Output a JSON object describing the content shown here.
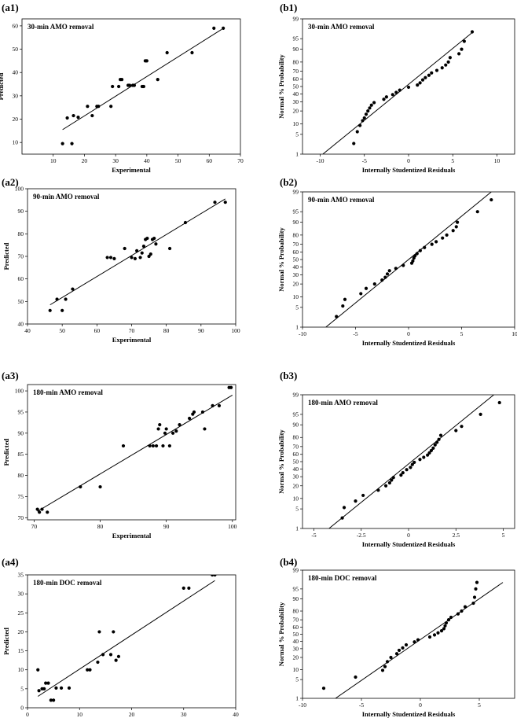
{
  "chart_data": [
    {
      "id": "a1",
      "panel_label": "(a1)",
      "type": "scatter",
      "title": "30-min AMO removal",
      "xlabel": "Experimental",
      "ylabel": "Predicted",
      "xlim": [
        0,
        70
      ],
      "ylim": [
        5,
        63
      ],
      "xticks": [
        10,
        20,
        30,
        40,
        50,
        60,
        70
      ],
      "yticks": [
        10,
        20,
        30,
        40,
        50,
        60
      ],
      "fit_line": [
        [
          13,
          15.5
        ],
        [
          64,
          58.5
        ]
      ],
      "points": [
        [
          13,
          9.5
        ],
        [
          14.5,
          20.5
        ],
        [
          16,
          9.5
        ],
        [
          16.5,
          21.5
        ],
        [
          18,
          20.8
        ],
        [
          21,
          25.5
        ],
        [
          22.5,
          21.5
        ],
        [
          24,
          25.5
        ],
        [
          24.5,
          25.5
        ],
        [
          28.5,
          25.5
        ],
        [
          29,
          34
        ],
        [
          31,
          34
        ],
        [
          31.5,
          37
        ],
        [
          32,
          37
        ],
        [
          34,
          34.5
        ],
        [
          34.5,
          34.5
        ],
        [
          35.5,
          34.5
        ],
        [
          36,
          34.5
        ],
        [
          38.5,
          34
        ],
        [
          39,
          34
        ],
        [
          39.5,
          45
        ],
        [
          40,
          45
        ],
        [
          43.5,
          37
        ],
        [
          46.5,
          48.5
        ],
        [
          54.5,
          48.5
        ],
        [
          61.5,
          59
        ],
        [
          64.5,
          59
        ]
      ]
    },
    {
      "id": "b1",
      "panel_label": "(b1)",
      "type": "scatter",
      "title": "30-min AMO removal",
      "xlabel": "Internally Studentized Residuals",
      "ylabel": "Normal % Probability",
      "xlim": [
        -12,
        12
      ],
      "ylim": [
        1,
        99
      ],
      "xticks": [
        -10,
        -5,
        0,
        5,
        10
      ],
      "yticks": [
        1,
        5,
        10,
        20,
        30,
        40,
        50,
        60,
        70,
        80,
        90,
        95,
        99
      ],
      "fit_line": [
        [
          -9.7,
          1
        ],
        [
          7.3,
          97
        ]
      ],
      "points": [
        [
          -6.2,
          2.5
        ],
        [
          -5.8,
          6
        ],
        [
          -5.5,
          9
        ],
        [
          -5.2,
          12
        ],
        [
          -5,
          14
        ],
        [
          -4.8,
          17
        ],
        [
          -4.6,
          20
        ],
        [
          -4.4,
          23
        ],
        [
          -4.2,
          26
        ],
        [
          -3.9,
          29
        ],
        [
          -2.8,
          33
        ],
        [
          -2.5,
          36
        ],
        [
          -1.8,
          39
        ],
        [
          -1.4,
          42
        ],
        [
          -1,
          45
        ],
        [
          0,
          49
        ],
        [
          1,
          52
        ],
        [
          1.3,
          55
        ],
        [
          1.6,
          59
        ],
        [
          1.9,
          62
        ],
        [
          2.3,
          65
        ],
        [
          2.6,
          68
        ],
        [
          3.2,
          71
        ],
        [
          3.8,
          74
        ],
        [
          4.2,
          77
        ],
        [
          4.5,
          80
        ],
        [
          4.7,
          84
        ],
        [
          5.7,
          87
        ],
        [
          6,
          90
        ],
        [
          6.3,
          94
        ],
        [
          7.2,
          97
        ]
      ]
    },
    {
      "id": "a2",
      "panel_label": "(a2)",
      "type": "scatter",
      "title": "90-min AMO removal",
      "xlabel": "Experimental",
      "ylabel": "Predicted",
      "xlim": [
        40,
        100
      ],
      "ylim": [
        40,
        100
      ],
      "xticks": [
        40,
        50,
        60,
        70,
        80,
        90,
        100
      ],
      "yticks": [
        40,
        50,
        60,
        70,
        80,
        90,
        100
      ],
      "fit_line": [
        [
          46.5,
          48.5
        ],
        [
          97,
          95.5
        ]
      ],
      "points": [
        [
          46.5,
          46
        ],
        [
          48.5,
          51
        ],
        [
          50,
          46
        ],
        [
          51,
          51
        ],
        [
          53,
          55.5
        ],
        [
          63,
          69.5
        ],
        [
          64,
          69.5
        ],
        [
          65,
          69
        ],
        [
          68,
          73.5
        ],
        [
          70,
          69.5
        ],
        [
          71,
          69
        ],
        [
          71.5,
          72.5
        ],
        [
          72.5,
          69.5
        ],
        [
          73,
          71.5
        ],
        [
          73.5,
          74.5
        ],
        [
          74,
          77.5
        ],
        [
          74.5,
          78
        ],
        [
          75,
          70
        ],
        [
          75.5,
          71
        ],
        [
          76,
          77.5
        ],
        [
          76.5,
          78
        ],
        [
          77,
          75.5
        ],
        [
          81,
          73.5
        ],
        [
          85.5,
          85
        ],
        [
          94,
          94
        ],
        [
          97,
          94
        ]
      ]
    },
    {
      "id": "b2",
      "panel_label": "(b2)",
      "type": "scatter",
      "title": "90-min AMO removal",
      "xlabel": "Internally Studentized Residuals",
      "ylabel": "Normal % Probability",
      "xlim": [
        -10,
        10
      ],
      "ylim": [
        1,
        99
      ],
      "xticks": [
        -10,
        -5,
        0,
        5,
        10
      ],
      "yticks": [
        1,
        5,
        10,
        20,
        30,
        40,
        50,
        60,
        70,
        80,
        90,
        95,
        99
      ],
      "fit_line": [
        [
          -7.8,
          1
        ],
        [
          7.8,
          99
        ]
      ],
      "points": [
        [
          -6.8,
          2.5
        ],
        [
          -6.2,
          5.5
        ],
        [
          -6,
          8.5
        ],
        [
          -4.5,
          12
        ],
        [
          -4,
          16
        ],
        [
          -3.2,
          20
        ],
        [
          -2.5,
          24
        ],
        [
          -2.2,
          27
        ],
        [
          -2,
          31
        ],
        [
          -1.8,
          35
        ],
        [
          -1.2,
          38
        ],
        [
          -0.5,
          42
        ],
        [
          0.3,
          45
        ],
        [
          0.4,
          48
        ],
        [
          0.5,
          52
        ],
        [
          0.6,
          55
        ],
        [
          0.8,
          58
        ],
        [
          1.1,
          62
        ],
        [
          1.5,
          66
        ],
        [
          2.2,
          70
        ],
        [
          2.6,
          73
        ],
        [
          3.2,
          77
        ],
        [
          3.6,
          80
        ],
        [
          4.2,
          84
        ],
        [
          4.5,
          87
        ],
        [
          4.6,
          90
        ],
        [
          6.5,
          95
        ],
        [
          7.8,
          98
        ]
      ]
    },
    {
      "id": "a3",
      "panel_label": "(a3)",
      "type": "scatter",
      "title": "180-min AMO removal",
      "xlabel": "Experimental",
      "ylabel": "Predicted",
      "xlim": [
        69,
        100.5
      ],
      "ylim": [
        69.5,
        101.5
      ],
      "xticks": [
        70,
        80,
        90,
        100
      ],
      "yticks": [
        70,
        75,
        80,
        85,
        90,
        95,
        100
      ],
      "fit_line": [
        [
          70.5,
          71.5
        ],
        [
          100,
          99
        ]
      ],
      "points": [
        [
          70.5,
          72
        ],
        [
          70.8,
          71.3
        ],
        [
          71.2,
          72
        ],
        [
          72,
          71.3
        ],
        [
          77,
          77.3
        ],
        [
          80,
          77.3
        ],
        [
          83.5,
          87
        ],
        [
          87.5,
          87
        ],
        [
          88,
          87
        ],
        [
          88.5,
          87
        ],
        [
          88.8,
          91
        ],
        [
          89,
          92
        ],
        [
          89.5,
          87
        ],
        [
          89.8,
          90
        ],
        [
          90,
          91
        ],
        [
          90.5,
          87
        ],
        [
          91,
          90
        ],
        [
          91.5,
          90.5
        ],
        [
          92,
          92
        ],
        [
          93.5,
          93.5
        ],
        [
          94,
          94.5
        ],
        [
          94.2,
          95
        ],
        [
          95.5,
          95
        ],
        [
          95.8,
          91
        ],
        [
          97,
          96.5
        ],
        [
          98,
          96.5
        ],
        [
          99.5,
          100.8
        ],
        [
          99.8,
          100.8
        ]
      ]
    },
    {
      "id": "b3",
      "panel_label": "(b3)",
      "type": "scatter",
      "title": "180-min AMO removal",
      "xlabel": "Internally Studentized Residuals",
      "ylabel": "Normal % Probability",
      "xlim": [
        -5.6,
        5.6
      ],
      "ylim": [
        1,
        99
      ],
      "xticks": [
        -5,
        -2.5,
        0,
        2.5,
        5
      ],
      "yticks": [
        1,
        5,
        10,
        20,
        30,
        40,
        50,
        60,
        70,
        80,
        90,
        95,
        99
      ],
      "fit_line": [
        [
          -4.2,
          1
        ],
        [
          4.5,
          99
        ]
      ],
      "points": [
        [
          -3.5,
          2.5
        ],
        [
          -3.4,
          5.5
        ],
        [
          -2.8,
          8.5
        ],
        [
          -2.4,
          12
        ],
        [
          -1.6,
          16
        ],
        [
          -1.2,
          20
        ],
        [
          -1,
          23
        ],
        [
          -0.9,
          26
        ],
        [
          -0.8,
          29
        ],
        [
          -0.4,
          32
        ],
        [
          -0.3,
          35
        ],
        [
          -0.1,
          39
        ],
        [
          0.1,
          42
        ],
        [
          0.2,
          46
        ],
        [
          0.3,
          49
        ],
        [
          0.6,
          53
        ],
        [
          0.8,
          56
        ],
        [
          1,
          59
        ],
        [
          1.1,
          62
        ],
        [
          1.2,
          65
        ],
        [
          1.3,
          68
        ],
        [
          1.4,
          72
        ],
        [
          1.5,
          75
        ],
        [
          1.6,
          78
        ],
        [
          1.7,
          82
        ],
        [
          2.5,
          86
        ],
        [
          2.8,
          89
        ],
        [
          3.8,
          95
        ],
        [
          4.8,
          98
        ]
      ]
    },
    {
      "id": "a4",
      "panel_label": "(a4)",
      "type": "scatter",
      "title": "180-min DOC removal",
      "xlabel": "Experimental",
      "ylabel": "Predicted",
      "xlim": [
        0,
        40
      ],
      "ylim": [
        0,
        35
      ],
      "xticks": [
        0,
        10,
        20,
        30,
        40
      ],
      "yticks": [
        0,
        5,
        10,
        15,
        20,
        25,
        30,
        35
      ],
      "fit_line": [
        [
          2,
          3
        ],
        [
          36,
          33.5
        ]
      ],
      "points": [
        [
          2,
          10
        ],
        [
          2.2,
          4.5
        ],
        [
          2.8,
          5
        ],
        [
          3.2,
          5
        ],
        [
          3.5,
          6.5
        ],
        [
          4,
          6.5
        ],
        [
          4.5,
          2
        ],
        [
          5,
          2
        ],
        [
          5.5,
          5.2
        ],
        [
          6.5,
          5.2
        ],
        [
          8,
          5.2
        ],
        [
          11.5,
          10
        ],
        [
          12,
          10
        ],
        [
          13.5,
          12
        ],
        [
          13.8,
          20
        ],
        [
          14.5,
          14
        ],
        [
          16,
          14
        ],
        [
          16.5,
          20
        ],
        [
          17,
          12.5
        ],
        [
          17.5,
          13.5
        ],
        [
          30,
          31.5
        ],
        [
          31,
          31.5
        ],
        [
          35.5,
          35
        ],
        [
          36,
          35
        ]
      ]
    },
    {
      "id": "b4",
      "panel_label": "(b4)",
      "type": "scatter",
      "title": "180-min DOC removal",
      "xlabel": "Internally Studentized Residuals",
      "ylabel": "Normal % Probability",
      "xlim": [
        -10,
        8
      ],
      "ylim": [
        1,
        99
      ],
      "xticks": [
        -10,
        -5,
        0,
        5
      ],
      "yticks": [
        1,
        5,
        10,
        20,
        30,
        40,
        50,
        60,
        70,
        80,
        90,
        95,
        99
      ],
      "fit_line": [
        [
          -7.2,
          1
        ],
        [
          7,
          97
        ]
      ],
      "points": [
        [
          -8.2,
          2.5
        ],
        [
          -5.5,
          6
        ],
        [
          -3.2,
          9.5
        ],
        [
          -3,
          12
        ],
        [
          -2.8,
          16
        ],
        [
          -2.5,
          20
        ],
        [
          -2,
          24
        ],
        [
          -1.8,
          28
        ],
        [
          -1.5,
          31
        ],
        [
          -1.2,
          35
        ],
        [
          -0.5,
          39
        ],
        [
          -0.2,
          42
        ],
        [
          0.8,
          46
        ],
        [
          1.2,
          49
        ],
        [
          1.5,
          52
        ],
        [
          1.8,
          55
        ],
        [
          2,
          58
        ],
        [
          2.1,
          62
        ],
        [
          2.2,
          66
        ],
        [
          2.4,
          70
        ],
        [
          2.6,
          73
        ],
        [
          3.2,
          77
        ],
        [
          3.5,
          80
        ],
        [
          3.8,
          84
        ],
        [
          4.5,
          87
        ],
        [
          4.6,
          91
        ],
        [
          4.7,
          95
        ],
        [
          4.8,
          97
        ]
      ]
    }
  ]
}
